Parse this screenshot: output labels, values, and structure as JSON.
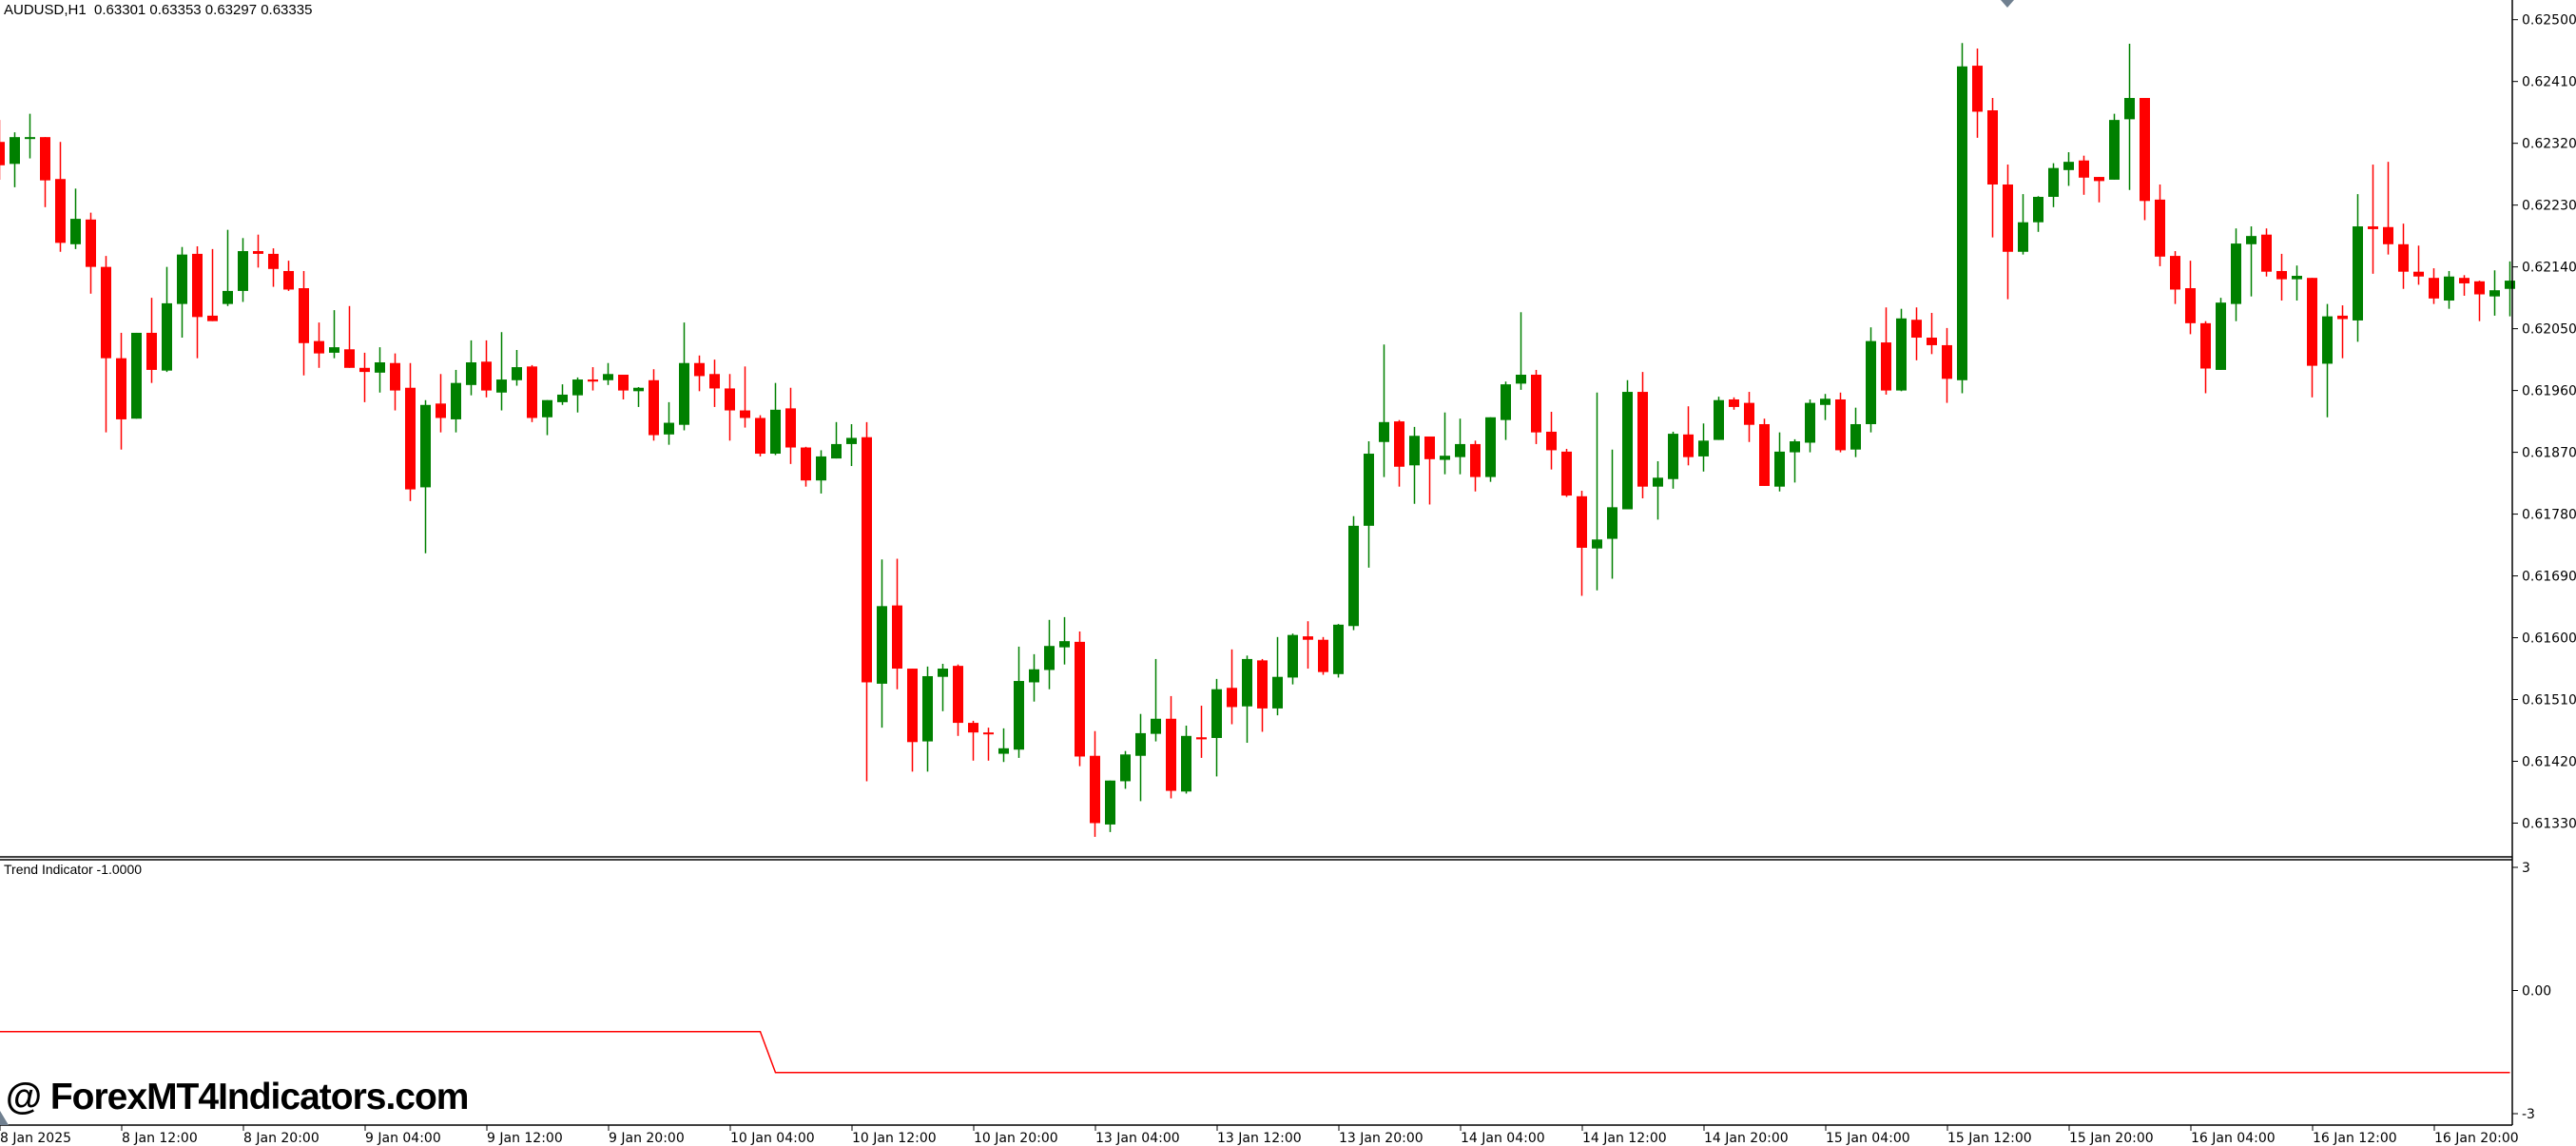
{
  "header": {
    "symbol": "AUDUSD,H1",
    "ohlc": "0.63301 0.63353 0.63297 0.63335"
  },
  "colors": {
    "bull": "#008000",
    "bear": "#ff0000",
    "indicator_line": "#ff0000",
    "axis": "#000000",
    "marker": "#708090"
  },
  "watermark": "@ ForexMT4Indicators.com",
  "indicator": {
    "title": "Trend Indicator -1.0000",
    "ticks": [
      "3",
      "0.00",
      "-3"
    ],
    "ylim": [
      -3,
      3
    ],
    "values": [
      -1,
      -1,
      -1,
      -1,
      -1,
      -1,
      -1,
      -1,
      -1,
      -1,
      -1,
      -1,
      -1,
      -1,
      -1,
      -1,
      -1,
      -1,
      -1,
      -1,
      -1,
      -1,
      -1,
      -1,
      -1,
      -1,
      -1,
      -1,
      -1,
      -1,
      -1,
      -1,
      -1,
      -1,
      -1,
      -1,
      -1,
      -1,
      -1,
      -1,
      -1,
      -1,
      -1,
      -1,
      -1,
      -1,
      -1,
      -1,
      -1,
      -1,
      -1,
      -2,
      -2,
      -2,
      -2,
      -2,
      -2,
      -2,
      -2,
      -2,
      -2,
      -2,
      -2,
      -2,
      -2,
      -2,
      -2,
      -2,
      -2,
      -2,
      -2,
      -2,
      -2,
      -2,
      -2,
      -2,
      -2,
      -2,
      -2,
      -2,
      -2,
      -2,
      -2,
      -2,
      -2,
      -2,
      -2,
      -2,
      -2,
      -2,
      -2,
      -2,
      -2,
      -2,
      -2,
      -2,
      -2,
      -2,
      -2,
      -2,
      -2,
      -2,
      -2,
      -2,
      -2,
      -2,
      -2,
      -2,
      -2,
      -2,
      -2,
      -2,
      -2,
      -2,
      -2,
      -2,
      -2,
      -2,
      -2,
      -2,
      -2,
      -2,
      -2,
      -2,
      -2,
      -2,
      -2,
      -2,
      -2,
      -2,
      -2,
      -2,
      -2,
      -2,
      -2,
      -2,
      -2,
      -2,
      -2,
      -2,
      -2,
      -2,
      -2,
      -2,
      -2,
      -2,
      -2,
      -2,
      -2,
      -2,
      -2,
      -2,
      -2,
      -2,
      -2,
      -2,
      -2,
      -2,
      -2,
      -2,
      -2,
      -2,
      -2,
      -2,
      -2,
      -2
    ]
  },
  "price_axis": {
    "ticks": [
      "0.62500",
      "0.62410",
      "0.62320",
      "0.62230",
      "0.62140",
      "0.62050",
      "0.61960",
      "0.61870",
      "0.61780",
      "0.61690",
      "0.61600",
      "0.61510",
      "0.61420",
      "0.61330"
    ],
    "ylim": [
      0.6133,
      0.625
    ]
  },
  "time_axis": {
    "labels": [
      "8 Jan 2025",
      "8 Jan 12:00",
      "8 Jan 20:00",
      "9 Jan 04:00",
      "9 Jan 12:00",
      "9 Jan 20:00",
      "10 Jan 04:00",
      "10 Jan 12:00",
      "10 Jan 20:00",
      "13 Jan 04:00",
      "13 Jan 12:00",
      "13 Jan 20:00",
      "14 Jan 04:00",
      "14 Jan 12:00",
      "14 Jan 20:00",
      "15 Jan 04:00",
      "15 Jan 12:00",
      "15 Jan 20:00",
      "16 Jan 04:00",
      "16 Jan 12:00",
      "16 Jan 20:00"
    ]
  },
  "chart_data": {
    "type": "candlestick",
    "ohlc_order": [
      "open",
      "high",
      "low",
      "close"
    ],
    "candles": [
      [
        0.62322,
        0.62354,
        0.62267,
        0.62288
      ],
      [
        0.6229,
        0.62336,
        0.62256,
        0.62329
      ],
      [
        0.62328,
        0.62363,
        0.62298,
        0.62329
      ],
      [
        0.62329,
        0.62329,
        0.62227,
        0.62266
      ],
      [
        0.62268,
        0.62322,
        0.62162,
        0.62175
      ],
      [
        0.62173,
        0.62254,
        0.62166,
        0.6221
      ],
      [
        0.62209,
        0.62219,
        0.62101,
        0.6214
      ],
      [
        0.6214,
        0.62156,
        0.61899,
        0.62007
      ],
      [
        0.62007,
        0.62044,
        0.61874,
        0.61918
      ],
      [
        0.61919,
        0.62044,
        0.61919,
        0.62044
      ],
      [
        0.62044,
        0.62095,
        0.61971,
        0.6199
      ],
      [
        0.61989,
        0.6214,
        0.61987,
        0.62087
      ],
      [
        0.62086,
        0.62169,
        0.62037,
        0.62158
      ],
      [
        0.62159,
        0.6217,
        0.62007,
        0.62067
      ],
      [
        0.62069,
        0.62166,
        0.62061,
        0.62061
      ],
      [
        0.62086,
        0.62194,
        0.62083,
        0.62105
      ],
      [
        0.62105,
        0.62182,
        0.62089,
        0.62163
      ],
      [
        0.62163,
        0.62187,
        0.62139,
        0.62159
      ],
      [
        0.62159,
        0.62167,
        0.62111,
        0.62137
      ],
      [
        0.62134,
        0.62149,
        0.62105,
        0.62107
      ],
      [
        0.62109,
        0.62134,
        0.61982,
        0.62029
      ],
      [
        0.62032,
        0.62059,
        0.61993,
        0.62014
      ],
      [
        0.62015,
        0.62077,
        0.62007,
        0.62023
      ],
      [
        0.6202,
        0.62083,
        0.61993,
        0.61993
      ],
      [
        0.61993,
        0.62015,
        0.61943,
        0.61987
      ],
      [
        0.61986,
        0.62023,
        0.61957,
        0.62001
      ],
      [
        0.62,
        0.62014,
        0.61931,
        0.6196
      ],
      [
        0.61964,
        0.62,
        0.61799,
        0.61816
      ],
      [
        0.61819,
        0.61946,
        0.61723,
        0.61939
      ],
      [
        0.61941,
        0.61984,
        0.61899,
        0.6192
      ],
      [
        0.61918,
        0.6199,
        0.61899,
        0.61971
      ],
      [
        0.61968,
        0.62033,
        0.61953,
        0.62001
      ],
      [
        0.62002,
        0.62033,
        0.6195,
        0.6196
      ],
      [
        0.61957,
        0.62045,
        0.61931,
        0.61976
      ],
      [
        0.61975,
        0.62019,
        0.61967,
        0.61994
      ],
      [
        0.61995,
        0.61997,
        0.61914,
        0.6192
      ],
      [
        0.61921,
        0.61946,
        0.61895,
        0.61946
      ],
      [
        0.61943,
        0.61969,
        0.61939,
        0.61954
      ],
      [
        0.61953,
        0.61979,
        0.61928,
        0.61976
      ],
      [
        0.61976,
        0.61994,
        0.6196,
        0.61973
      ],
      [
        0.61975,
        0.62,
        0.61968,
        0.61984
      ],
      [
        0.61983,
        0.61983,
        0.61947,
        0.6196
      ],
      [
        0.61959,
        0.61965,
        0.61936,
        0.61964
      ],
      [
        0.61975,
        0.61991,
        0.61887,
        0.61895
      ],
      [
        0.61896,
        0.61943,
        0.61881,
        0.61913
      ],
      [
        0.6191,
        0.62059,
        0.61902,
        0.62
      ],
      [
        0.62,
        0.62011,
        0.61959,
        0.61981
      ],
      [
        0.61984,
        0.62005,
        0.61936,
        0.61963
      ],
      [
        0.61963,
        0.61984,
        0.61887,
        0.61931
      ],
      [
        0.61931,
        0.61995,
        0.61906,
        0.6192
      ],
      [
        0.6192,
        0.61924,
        0.61864,
        0.61868
      ],
      [
        0.61868,
        0.61971,
        0.61866,
        0.61932
      ],
      [
        0.61934,
        0.61964,
        0.61853,
        0.61877
      ],
      [
        0.61877,
        0.61878,
        0.6182,
        0.61829
      ],
      [
        0.61829,
        0.61873,
        0.6181,
        0.61864
      ],
      [
        0.61861,
        0.61914,
        0.61861,
        0.61882
      ],
      [
        0.61882,
        0.61911,
        0.6185,
        0.61891
      ],
      [
        0.61892,
        0.61914,
        0.61391,
        0.61535
      ],
      [
        0.61533,
        0.61714,
        0.61469,
        0.61646
      ],
      [
        0.61647,
        0.61715,
        0.61525,
        0.61555
      ],
      [
        0.61555,
        0.61555,
        0.61405,
        0.61448
      ],
      [
        0.61449,
        0.61558,
        0.61405,
        0.61544
      ],
      [
        0.61543,
        0.61562,
        0.61493,
        0.61555
      ],
      [
        0.61559,
        0.61561,
        0.61457,
        0.61476
      ],
      [
        0.61476,
        0.61479,
        0.61421,
        0.61462
      ],
      [
        0.61462,
        0.61469,
        0.61421,
        0.6146
      ],
      [
        0.61431,
        0.61468,
        0.61419,
        0.61439
      ],
      [
        0.61437,
        0.61587,
        0.61425,
        0.61537
      ],
      [
        0.61535,
        0.61576,
        0.61507,
        0.61554
      ],
      [
        0.61553,
        0.61626,
        0.61525,
        0.61588
      ],
      [
        0.61586,
        0.6163,
        0.61561,
        0.61595
      ],
      [
        0.61594,
        0.61609,
        0.61413,
        0.61427
      ],
      [
        0.61428,
        0.61464,
        0.6131,
        0.6133
      ],
      [
        0.61328,
        0.61392,
        0.61317,
        0.61392
      ],
      [
        0.61391,
        0.61435,
        0.6138,
        0.6143
      ],
      [
        0.61428,
        0.61489,
        0.61362,
        0.61461
      ],
      [
        0.6146,
        0.61569,
        0.61449,
        0.61482
      ],
      [
        0.61482,
        0.61515,
        0.61366,
        0.61377
      ],
      [
        0.61376,
        0.61472,
        0.61373,
        0.61457
      ],
      [
        0.61455,
        0.61501,
        0.61425,
        0.61452
      ],
      [
        0.61454,
        0.6154,
        0.61398,
        0.61525
      ],
      [
        0.61527,
        0.61583,
        0.61474,
        0.61499
      ],
      [
        0.615,
        0.61574,
        0.61447,
        0.61569
      ],
      [
        0.61567,
        0.61569,
        0.61463,
        0.61497
      ],
      [
        0.61497,
        0.61601,
        0.61487,
        0.61543
      ],
      [
        0.61542,
        0.61606,
        0.61532,
        0.61604
      ],
      [
        0.61602,
        0.61624,
        0.61555,
        0.61597
      ],
      [
        0.61597,
        0.61601,
        0.61546,
        0.6155
      ],
      [
        0.61547,
        0.6162,
        0.61542,
        0.61619
      ],
      [
        0.61617,
        0.61777,
        0.61611,
        0.61763
      ],
      [
        0.61763,
        0.61886,
        0.61702,
        0.61868
      ],
      [
        0.61885,
        0.62027,
        0.61834,
        0.61914
      ],
      [
        0.61915,
        0.61917,
        0.6182,
        0.61849
      ],
      [
        0.61851,
        0.61907,
        0.61795,
        0.61894
      ],
      [
        0.61893,
        0.61893,
        0.61794,
        0.6186
      ],
      [
        0.61859,
        0.61928,
        0.61838,
        0.61865
      ],
      [
        0.61863,
        0.61919,
        0.61838,
        0.61882
      ],
      [
        0.61882,
        0.61887,
        0.61813,
        0.61834
      ],
      [
        0.61834,
        0.61921,
        0.61827,
        0.61921
      ],
      [
        0.61917,
        0.61973,
        0.61888,
        0.61969
      ],
      [
        0.6197,
        0.62074,
        0.61961,
        0.61983
      ],
      [
        0.61983,
        0.6199,
        0.61882,
        0.61899
      ],
      [
        0.619,
        0.61929,
        0.61845,
        0.61873
      ],
      [
        0.61871,
        0.61875,
        0.61805,
        0.61807
      ],
      [
        0.61806,
        0.61814,
        0.61661,
        0.61731
      ],
      [
        0.6173,
        0.61957,
        0.61669,
        0.61743
      ],
      [
        0.61744,
        0.61874,
        0.61686,
        0.6179
      ],
      [
        0.61787,
        0.61975,
        0.61787,
        0.61958
      ],
      [
        0.61958,
        0.61987,
        0.61803,
        0.6182
      ],
      [
        0.6182,
        0.61857,
        0.61772,
        0.61833
      ],
      [
        0.61831,
        0.619,
        0.61817,
        0.61897
      ],
      [
        0.61896,
        0.61937,
        0.61851,
        0.61863
      ],
      [
        0.61864,
        0.61912,
        0.61842,
        0.61887
      ],
      [
        0.61888,
        0.61951,
        0.61888,
        0.61946
      ],
      [
        0.61947,
        0.6195,
        0.61932,
        0.61936
      ],
      [
        0.61942,
        0.61958,
        0.61885,
        0.6191
      ],
      [
        0.61911,
        0.61919,
        0.61821,
        0.61821
      ],
      [
        0.6182,
        0.61899,
        0.61813,
        0.61871
      ],
      [
        0.6187,
        0.61889,
        0.61826,
        0.61886
      ],
      [
        0.61884,
        0.61947,
        0.6187,
        0.61942
      ],
      [
        0.61939,
        0.61955,
        0.61917,
        0.61948
      ],
      [
        0.61947,
        0.61957,
        0.6187,
        0.61873
      ],
      [
        0.61874,
        0.61935,
        0.61863,
        0.61911
      ],
      [
        0.61911,
        0.62052,
        0.61899,
        0.62032
      ],
      [
        0.6203,
        0.62081,
        0.61954,
        0.6196
      ],
      [
        0.6196,
        0.62079,
        0.61959,
        0.62065
      ],
      [
        0.62063,
        0.62081,
        0.62004,
        0.62037
      ],
      [
        0.62037,
        0.62073,
        0.62013,
        0.62026
      ],
      [
        0.62026,
        0.62051,
        0.61942,
        0.61977
      ],
      [
        0.61975,
        0.62466,
        0.61956,
        0.62432
      ],
      [
        0.62433,
        0.62458,
        0.62328,
        0.62366
      ],
      [
        0.62368,
        0.62386,
        0.62183,
        0.6226
      ],
      [
        0.6226,
        0.62289,
        0.62093,
        0.62162
      ],
      [
        0.62162,
        0.62246,
        0.62158,
        0.62205
      ],
      [
        0.62205,
        0.62243,
        0.62191,
        0.62242
      ],
      [
        0.62242,
        0.62291,
        0.62227,
        0.62284
      ],
      [
        0.62281,
        0.62307,
        0.62258,
        0.62293
      ],
      [
        0.62295,
        0.62302,
        0.62245,
        0.6227
      ],
      [
        0.62271,
        0.62271,
        0.62234,
        0.62265
      ],
      [
        0.62267,
        0.62363,
        0.62267,
        0.62354
      ],
      [
        0.62355,
        0.62465,
        0.62252,
        0.62386
      ],
      [
        0.62386,
        0.62386,
        0.62208,
        0.62236
      ],
      [
        0.62238,
        0.6226,
        0.62141,
        0.62155
      ],
      [
        0.62156,
        0.62163,
        0.62086,
        0.62107
      ],
      [
        0.62109,
        0.62149,
        0.62042,
        0.62058
      ],
      [
        0.62058,
        0.62061,
        0.61956,
        0.61992
      ],
      [
        0.6199,
        0.62095,
        0.6199,
        0.62088
      ],
      [
        0.62086,
        0.62196,
        0.62061,
        0.62174
      ],
      [
        0.62173,
        0.62199,
        0.62097,
        0.62185
      ],
      [
        0.62187,
        0.62196,
        0.62126,
        0.62133
      ],
      [
        0.62134,
        0.62159,
        0.62091,
        0.62122
      ],
      [
        0.62122,
        0.62142,
        0.62091,
        0.62127
      ],
      [
        0.62124,
        0.62124,
        0.6195,
        0.61996
      ],
      [
        0.61999,
        0.62086,
        0.61921,
        0.62068
      ],
      [
        0.62069,
        0.62084,
        0.62007,
        0.62064
      ],
      [
        0.62062,
        0.62246,
        0.62031,
        0.62199
      ],
      [
        0.62199,
        0.62289,
        0.6213,
        0.62195
      ],
      [
        0.62198,
        0.62293,
        0.62158,
        0.62173
      ],
      [
        0.62173,
        0.62203,
        0.62108,
        0.62133
      ],
      [
        0.62133,
        0.62171,
        0.62114,
        0.62126
      ],
      [
        0.62124,
        0.62138,
        0.62086,
        0.62094
      ],
      [
        0.62091,
        0.62134,
        0.62079,
        0.62126
      ],
      [
        0.62124,
        0.62128,
        0.62098,
        0.62116
      ],
      [
        0.62119,
        0.6212,
        0.62061,
        0.621
      ],
      [
        0.62097,
        0.62135,
        0.62069,
        0.62106
      ],
      [
        0.62108,
        0.62148,
        0.62068,
        0.6212
      ]
    ]
  }
}
